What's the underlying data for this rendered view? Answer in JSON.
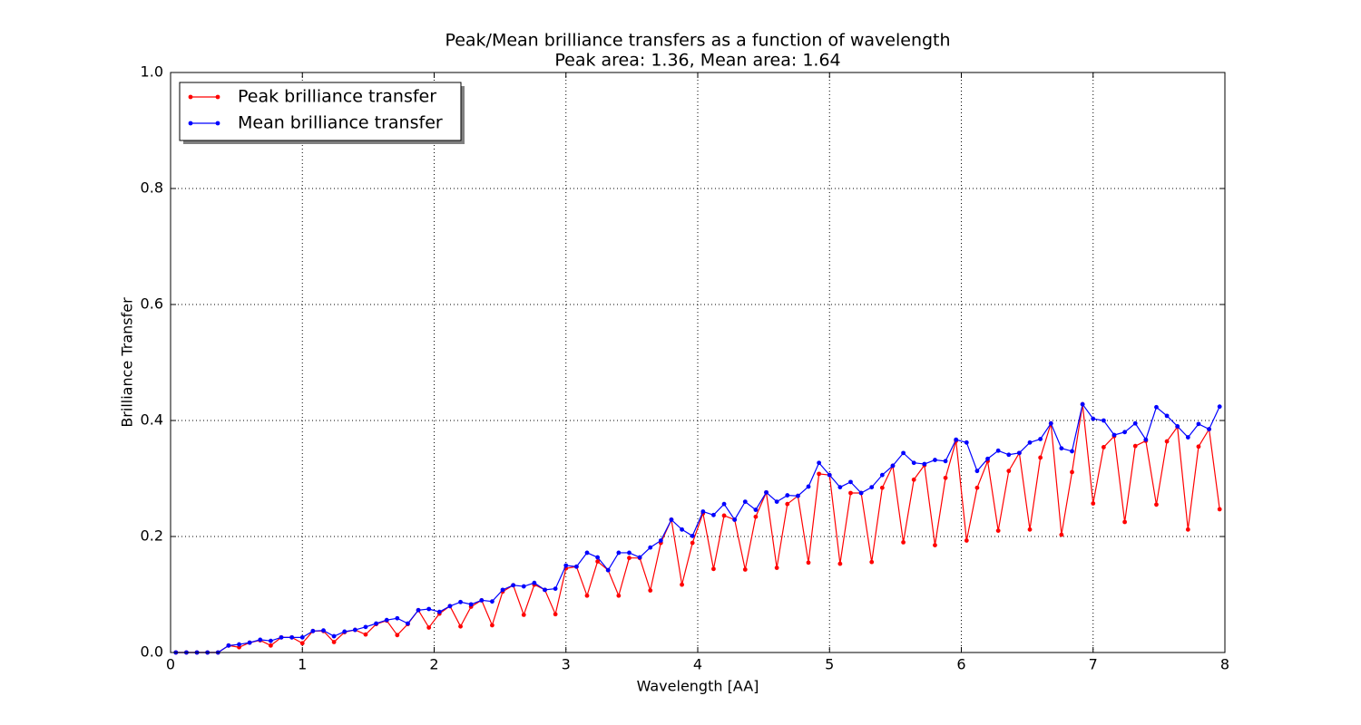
{
  "chart_data": {
    "type": "line",
    "title": "Peak/Mean brilliance transfers as a function of wavelength",
    "subtitle": "Peak area: 1.36, Mean area: 1.64",
    "xlabel": "Wavelength [AA]",
    "ylabel": "Brilliance Transfer",
    "x": [
      0.04,
      0.12,
      0.2,
      0.28,
      0.36,
      0.44,
      0.52,
      0.6,
      0.68,
      0.76,
      0.84,
      0.92,
      1,
      1.08,
      1.16,
      1.24,
      1.32,
      1.4,
      1.48,
      1.56,
      1.64,
      1.72,
      1.8,
      1.88,
      1.96,
      2.04,
      2.12,
      2.2,
      2.28,
      2.36,
      2.44,
      2.52,
      2.6,
      2.68,
      2.76,
      2.84,
      2.92,
      3,
      3.08,
      3.16,
      3.24,
      3.32,
      3.4,
      3.48,
      3.56,
      3.64,
      3.72,
      3.8,
      3.88,
      3.96,
      4.04,
      4.12,
      4.2,
      4.28,
      4.36,
      4.44,
      4.52,
      4.6,
      4.68,
      4.76,
      4.84,
      4.92,
      5,
      5.08,
      5.16,
      5.24,
      5.32,
      5.4,
      5.48,
      5.56,
      5.64,
      5.72,
      5.8,
      5.88,
      5.96,
      6.04,
      6.12,
      6.2,
      6.28,
      6.36,
      6.44,
      6.52,
      6.6,
      6.68,
      6.76,
      6.84,
      6.92,
      7,
      7.08,
      7.16,
      7.24,
      7.32,
      7.4,
      7.48,
      7.56,
      7.64,
      7.72,
      7.8,
      7.88,
      7.96
    ],
    "series": [
      {
        "name": "Peak brilliance transfer",
        "color": "#ff0000",
        "values": [
          0,
          0,
          0,
          0,
          0,
          0.012,
          0.009,
          0.017,
          0.021,
          0.012,
          0.026,
          0.026,
          0.016,
          0.037,
          0.037,
          0.018,
          0.035,
          0.039,
          0.031,
          0.049,
          0.055,
          0.03,
          0.049,
          0.073,
          0.043,
          0.067,
          0.08,
          0.045,
          0.079,
          0.09,
          0.047,
          0.105,
          0.116,
          0.065,
          0.117,
          0.108,
          0.066,
          0.145,
          0.148,
          0.098,
          0.157,
          0.142,
          0.098,
          0.163,
          0.163,
          0.107,
          0.189,
          0.229,
          0.117,
          0.189,
          0.24,
          0.144,
          0.236,
          0.229,
          0.143,
          0.234,
          0.276,
          0.146,
          0.256,
          0.27,
          0.155,
          0.308,
          0.306,
          0.153,
          0.275,
          0.275,
          0.156,
          0.284,
          0.322,
          0.19,
          0.298,
          0.323,
          0.185,
          0.301,
          0.365,
          0.193,
          0.284,
          0.33,
          0.21,
          0.313,
          0.344,
          0.212,
          0.336,
          0.395,
          0.203,
          0.311,
          0.428,
          0.257,
          0.354,
          0.373,
          0.225,
          0.356,
          0.365,
          0.255,
          0.364,
          0.389,
          0.212,
          0.355,
          0.385,
          0.247
        ]
      },
      {
        "name": "Mean brilliance transfer",
        "color": "#0000ff",
        "values": [
          0,
          0,
          0,
          0,
          0,
          0.012,
          0.014,
          0.017,
          0.022,
          0.02,
          0.026,
          0.026,
          0.026,
          0.037,
          0.038,
          0.028,
          0.036,
          0.039,
          0.044,
          0.05,
          0.056,
          0.059,
          0.05,
          0.073,
          0.075,
          0.07,
          0.08,
          0.087,
          0.083,
          0.09,
          0.088,
          0.108,
          0.116,
          0.114,
          0.12,
          0.108,
          0.11,
          0.15,
          0.148,
          0.172,
          0.164,
          0.142,
          0.172,
          0.172,
          0.164,
          0.181,
          0.193,
          0.229,
          0.212,
          0.201,
          0.243,
          0.237,
          0.256,
          0.229,
          0.26,
          0.246,
          0.276,
          0.26,
          0.271,
          0.27,
          0.286,
          0.327,
          0.306,
          0.285,
          0.294,
          0.275,
          0.285,
          0.306,
          0.322,
          0.344,
          0.327,
          0.325,
          0.332,
          0.33,
          0.367,
          0.362,
          0.313,
          0.334,
          0.348,
          0.341,
          0.344,
          0.362,
          0.368,
          0.395,
          0.352,
          0.347,
          0.428,
          0.403,
          0.4,
          0.375,
          0.38,
          0.395,
          0.367,
          0.423,
          0.408,
          0.39,
          0.371,
          0.394,
          0.385,
          0.424
        ]
      }
    ],
    "xlim": [
      0,
      8
    ],
    "xticks": [
      0,
      1,
      2,
      3,
      4,
      5,
      6,
      7,
      8
    ],
    "ylim": [
      0,
      1
    ],
    "yticks": [
      {
        "value": 0,
        "label": "0.0"
      },
      0.2,
      0.4,
      0.6,
      0.8,
      {
        "value": 1,
        "label": "1.0"
      }
    ],
    "grid": true,
    "legend": "upper left"
  }
}
